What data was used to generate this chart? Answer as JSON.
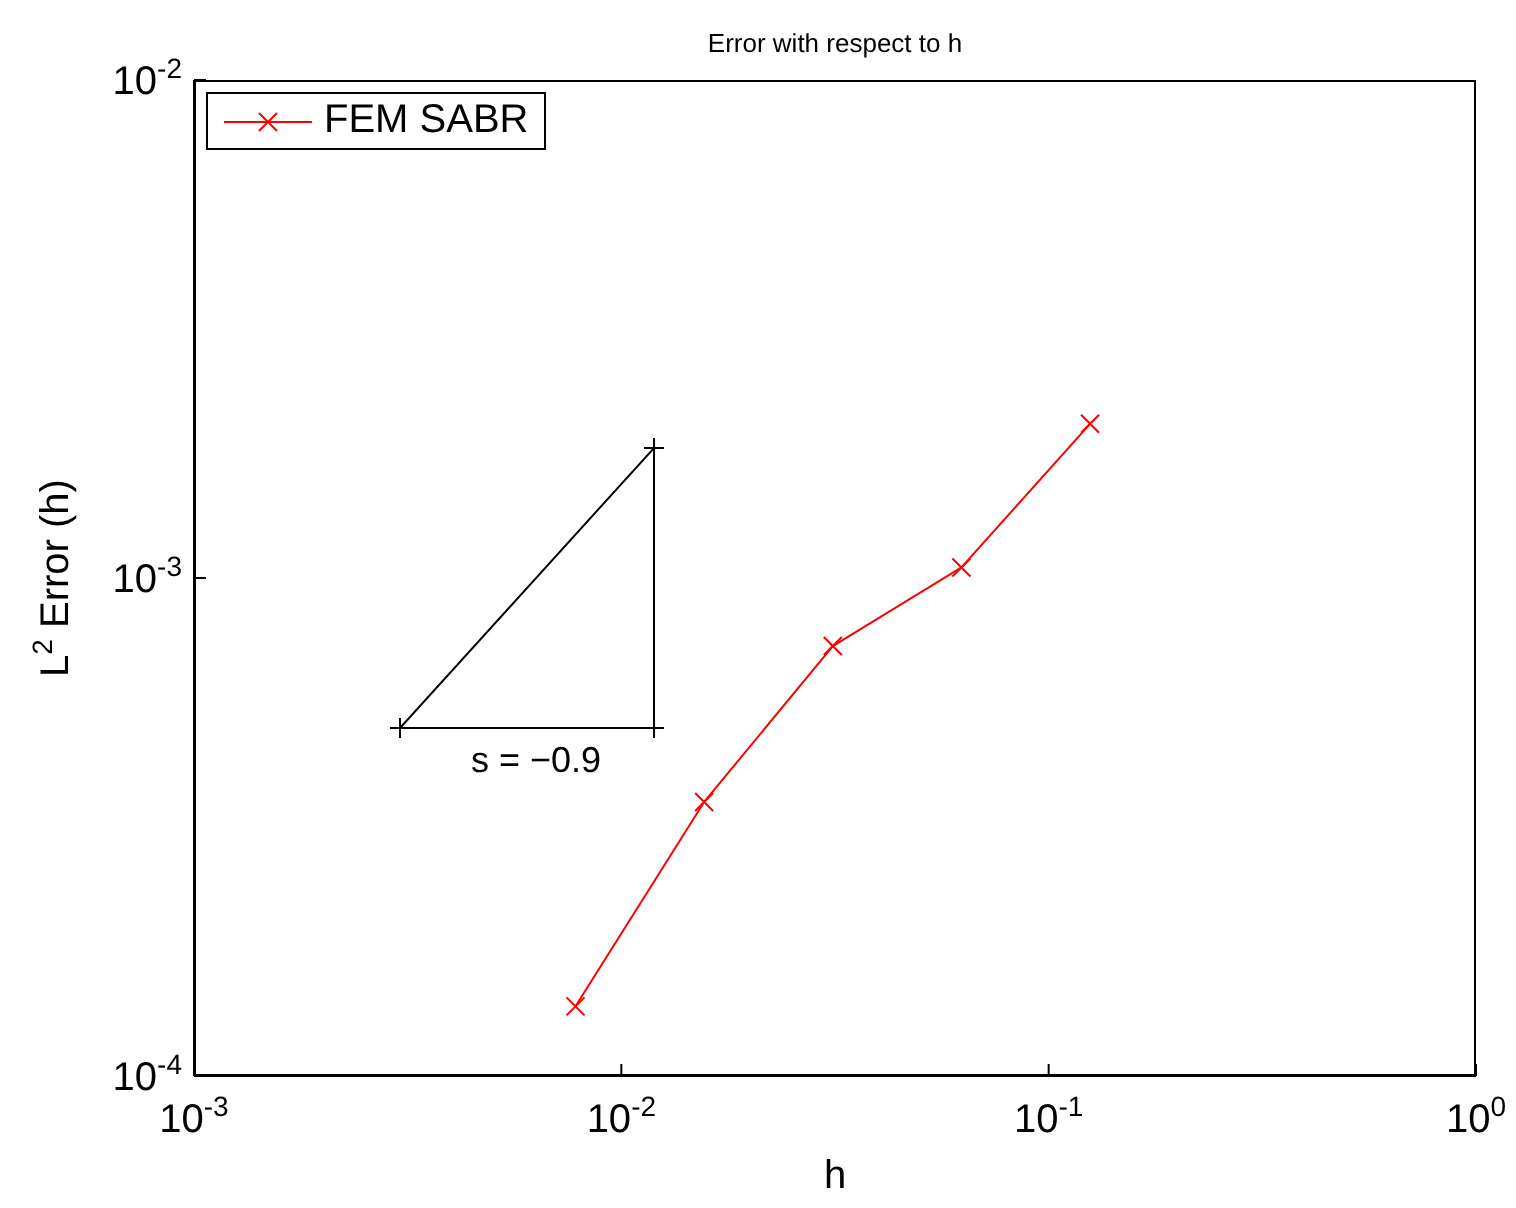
{
  "chart_data": {
    "type": "line",
    "title": "Error with respect to h",
    "xlabel": "h",
    "ylabel": "L$^{2}$ Error (h)",
    "log": "xy",
    "xlim": [
      0.001,
      1
    ],
    "xticks": [
      {
        "value": 0.001,
        "label": "10$^{-3}$"
      },
      {
        "value": 0.01,
        "label": "10$^{-2}$"
      },
      {
        "value": 0.1,
        "label": "10$^{-1}$"
      },
      {
        "value": 1,
        "label": "10$^{0}$"
      }
    ],
    "ylim": [
      0.0001,
      0.01
    ],
    "yticks": [
      {
        "value": 0.0001,
        "label": "10$^{-4}$"
      },
      {
        "value": 0.001,
        "label": "10$^{-3}$"
      },
      {
        "value": 0.01,
        "label": "10$^{-2}$"
      }
    ],
    "grid": false,
    "legend": "top left",
    "marker": "cross",
    "line_style": "solid",
    "series": [
      {
        "name": "FEM SABR",
        "color": "#ff0000",
        "x": [
          0.0078125,
          0.015625,
          0.03125,
          0.0625,
          0.125
        ],
        "values": [
          0.000138,
          0.000355,
          0.00073,
          0.00105,
          0.00204
        ]
      }
    ],
    "annotations": [
      "s = −0.9"
    ]
  }
}
